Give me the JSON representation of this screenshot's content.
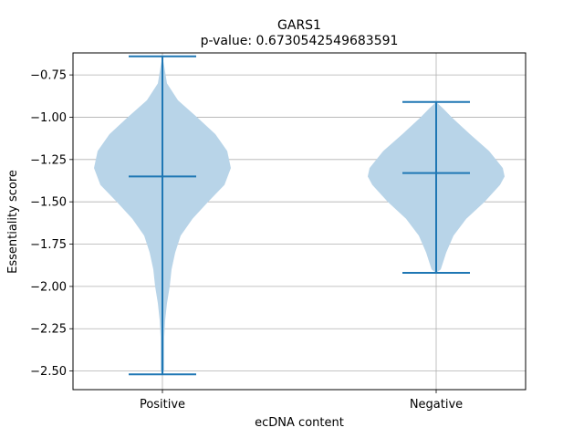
{
  "chart_data": {
    "type": "violin",
    "title": "GARS1",
    "subtitle": "p-value: 0.6730542549683591",
    "xlabel": "ecDNA content",
    "ylabel": "Essentiality score",
    "categories": [
      "Positive",
      "Negative"
    ],
    "ylim": [
      -2.61,
      -0.62
    ],
    "yticks": [
      -0.75,
      -1.0,
      -1.25,
      -1.5,
      -1.75,
      -2.0,
      -2.25,
      -2.5
    ],
    "ytick_labels": [
      "−0.75",
      "−1.00",
      "−1.25",
      "−1.50",
      "−1.75",
      "−2.00",
      "−2.25",
      "−2.50"
    ],
    "grid": true,
    "colors": {
      "body": "#b8d4e8",
      "lines": "#1f77b4",
      "grid": "#b0b0b0"
    },
    "violins": [
      {
        "name": "Positive",
        "max": -0.64,
        "median": -1.35,
        "min": -2.52,
        "density": [
          [
            -0.64,
            0.0
          ],
          [
            -0.7,
            0.02
          ],
          [
            -0.8,
            0.05
          ],
          [
            -0.9,
            0.17
          ],
          [
            -1.0,
            0.38
          ],
          [
            -1.1,
            0.58
          ],
          [
            -1.2,
            0.71
          ],
          [
            -1.3,
            0.75
          ],
          [
            -1.4,
            0.68
          ],
          [
            -1.5,
            0.5
          ],
          [
            -1.6,
            0.33
          ],
          [
            -1.7,
            0.2
          ],
          [
            -1.8,
            0.14
          ],
          [
            -1.9,
            0.1
          ],
          [
            -2.0,
            0.08
          ],
          [
            -2.1,
            0.05
          ],
          [
            -2.2,
            0.03
          ],
          [
            -2.3,
            0.02
          ],
          [
            -2.4,
            0.02
          ],
          [
            -2.5,
            0.02
          ],
          [
            -2.52,
            0.0
          ]
        ]
      },
      {
        "name": "Negative",
        "max": -0.91,
        "median": -1.33,
        "min": -1.92,
        "density": [
          [
            -0.91,
            0.0
          ],
          [
            -0.95,
            0.08
          ],
          [
            -1.0,
            0.17
          ],
          [
            -1.1,
            0.37
          ],
          [
            -1.2,
            0.58
          ],
          [
            -1.3,
            0.73
          ],
          [
            -1.35,
            0.75
          ],
          [
            -1.4,
            0.7
          ],
          [
            -1.5,
            0.53
          ],
          [
            -1.6,
            0.33
          ],
          [
            -1.7,
            0.19
          ],
          [
            -1.8,
            0.11
          ],
          [
            -1.85,
            0.08
          ],
          [
            -1.9,
            0.05
          ],
          [
            -1.92,
            0.0
          ]
        ]
      }
    ]
  }
}
